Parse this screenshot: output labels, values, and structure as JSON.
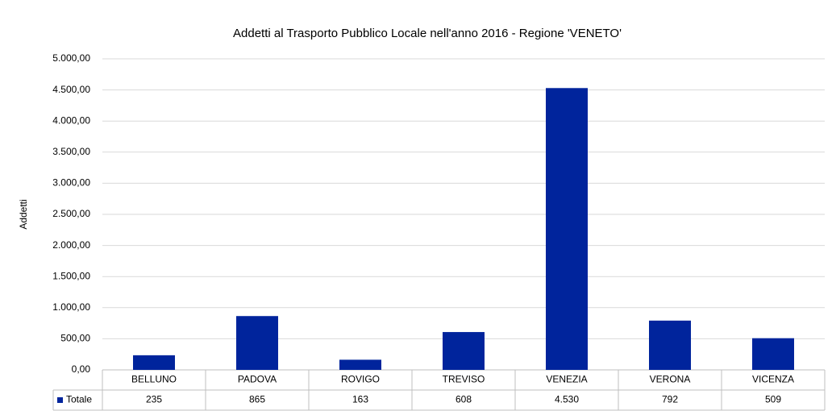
{
  "chart_data": {
    "type": "bar",
    "title": "Addetti al Trasporto Pubblico Locale nell'anno 2016 - Regione 'VENETO'",
    "ylabel": "Addetti",
    "categories": [
      "BELLUNO",
      "PADOVA",
      "ROVIGO",
      "TREVISO",
      "VENEZIA",
      "VERONA",
      "VICENZA"
    ],
    "series": [
      {
        "name": "Totale",
        "color": "#00249c",
        "values": [
          235,
          865,
          163,
          608,
          4530,
          792,
          509
        ],
        "value_labels": [
          "235",
          "865",
          "163",
          "608",
          "4.530",
          "792",
          "509"
        ]
      }
    ],
    "ylim": [
      0,
      5000
    ],
    "yticks": [
      {
        "value": 0,
        "label": "0,00"
      },
      {
        "value": 500,
        "label": "500,00"
      },
      {
        "value": 1000,
        "label": "1.000,00"
      },
      {
        "value": 1500,
        "label": "1.500,00"
      },
      {
        "value": 2000,
        "label": "2.000,00"
      },
      {
        "value": 2500,
        "label": "2.500,00"
      },
      {
        "value": 3000,
        "label": "3.000,00"
      },
      {
        "value": 3500,
        "label": "3.500,00"
      },
      {
        "value": 4000,
        "label": "4.000,00"
      },
      {
        "value": 4500,
        "label": "4.500,00"
      },
      {
        "value": 5000,
        "label": "5.000,00"
      }
    ],
    "grid": true
  }
}
